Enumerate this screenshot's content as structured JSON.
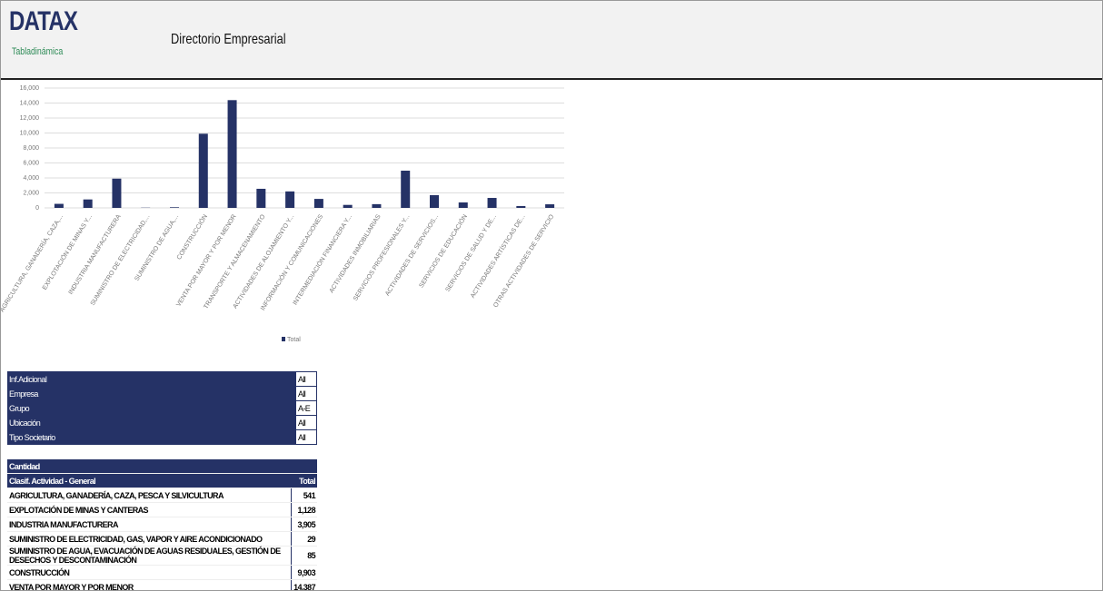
{
  "header": {
    "logo": "DATAX",
    "sublogo": "Tabladinámica",
    "title": "Directorio Empresarial"
  },
  "chart_data": {
    "type": "bar",
    "categories": [
      "AGRICULTURA, GANADERÍA, CAZA,...",
      "EXPLOTACIÓN DE MINAS Y...",
      "INDUSTRIA MANUFACTURERA",
      "SUMINISTRO DE ELECTRICIDAD,...",
      "SUMINISTRO DE AGUA,...",
      "CONSTRUCCIÓN",
      "VENTA POR MAYOR Y POR MENOR",
      "TRANSPORTE Y ALMACENAMIENTO",
      "ACTIVIDADES DE ALOJAMIENTO Y...",
      "INFORMACIÓN Y COMUNICACIONES",
      "INTERMEDIACIÓN FINANCIERA Y...",
      "ACTIVIDADES INMOBILIARIAS",
      "SERVICIOS PROFESIONALES Y...",
      "ACTIVIDADES DE SERVICIOS...",
      "SERVICIOS DE EDUCACIÓN",
      "SERVICIOS DE SALUD Y DE...",
      "ACTIVIDADES ARTÍSTICAS DE...",
      "OTRAS ACTIVIDADES DE SERVICIO"
    ],
    "series": [
      {
        "name": "Total",
        "color": "#253266",
        "values": [
          541,
          1128,
          3905,
          29,
          85,
          9903,
          14387,
          2550,
          2200,
          1200,
          400,
          500,
          4970,
          1700,
          730,
          1330,
          250,
          480
        ]
      }
    ],
    "ylim": [
      0,
      16000
    ],
    "yticks": [
      0,
      {
        "value": 2000,
        "label": "2,000"
      },
      {
        "value": 4000,
        "label": "4,000"
      },
      {
        "value": 6000,
        "label": "6,000"
      },
      {
        "value": 8000,
        "label": "8,000"
      },
      {
        "value": 10000,
        "label": "10,000"
      },
      {
        "value": 12000,
        "label": "12,000"
      },
      {
        "value": 14000,
        "label": "14,000"
      },
      {
        "value": 16000,
        "label": "16,000"
      }
    ],
    "grid": true,
    "legend": "bottom"
  },
  "filters": {
    "rows": [
      [
        "Inf.Adicional",
        "All"
      ],
      [
        "Empresa",
        "All"
      ],
      [
        "Grupo",
        "A-E"
      ],
      [
        "Ubicación",
        "All"
      ],
      [
        "Tipo Societario",
        "All"
      ]
    ]
  },
  "pivot": {
    "measure": "Cantidad",
    "row_header": "Clasif. Actividad - General",
    "total_header": "Total",
    "rows": [
      [
        "AGRICULTURA, GANADERÍA, CAZA, PESCA Y SILVICULTURA",
        "541"
      ],
      [
        "EXPLOTACIÓN DE MINAS Y CANTERAS",
        "1,128"
      ],
      [
        "INDUSTRIA MANUFACTURERA",
        "3,905"
      ],
      [
        "SUMINISTRO DE ELECTRICIDAD, GAS, VAPOR Y AIRE ACONDICIONADO",
        "29"
      ],
      [
        "SUMINISTRO DE AGUA, EVACUACIÓN DE AGUAS RESIDUALES, GESTIÓN DE DESECHOS Y DESCONTAMINACIÓN",
        "85"
      ],
      [
        "CONSTRUCCIÓN",
        "9,903"
      ],
      [
        "VENTA POR MAYOR Y POR MENOR",
        "14,387"
      ]
    ]
  }
}
